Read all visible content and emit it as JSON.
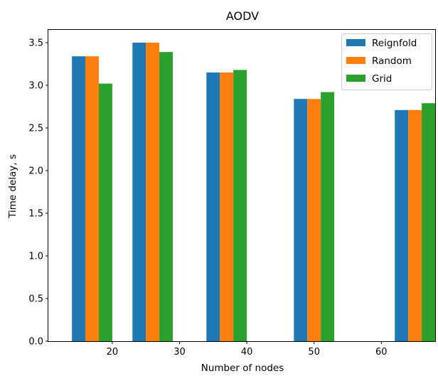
{
  "chart_data": {
    "type": "bar",
    "title": "AODV",
    "xlabel": "Number of nodes",
    "ylabel": "Time delay, s",
    "xlim": [
      10.5,
      68.0
    ],
    "ylim": [
      0,
      3.65
    ],
    "xticks": [
      20,
      30,
      40,
      50,
      60
    ],
    "yticks": [
      0.0,
      0.5,
      1.0,
      1.5,
      2.0,
      2.5,
      3.0,
      3.5
    ],
    "ytick_labels": [
      "0.0",
      "0.5",
      "1.0",
      "1.5",
      "2.0",
      "2.5",
      "3.0",
      "3.5"
    ],
    "bar_width": 2,
    "legend_position": "top-right",
    "grid": false,
    "series": [
      {
        "name": "Reignfold",
        "color": "#1f77b4",
        "x": [
          15,
          24,
          35,
          48,
          63
        ],
        "values": [
          3.34,
          3.5,
          3.15,
          2.84,
          2.71
        ]
      },
      {
        "name": "Random",
        "color": "#ff7f0e",
        "x": [
          17,
          26,
          37,
          50,
          65
        ],
        "values": [
          3.34,
          3.5,
          3.15,
          2.84,
          2.71
        ]
      },
      {
        "name": "Grid",
        "color": "#2ca02c",
        "x": [
          19,
          28,
          39,
          52,
          67
        ],
        "values": [
          3.02,
          3.39,
          3.18,
          2.92,
          2.79
        ]
      }
    ]
  }
}
